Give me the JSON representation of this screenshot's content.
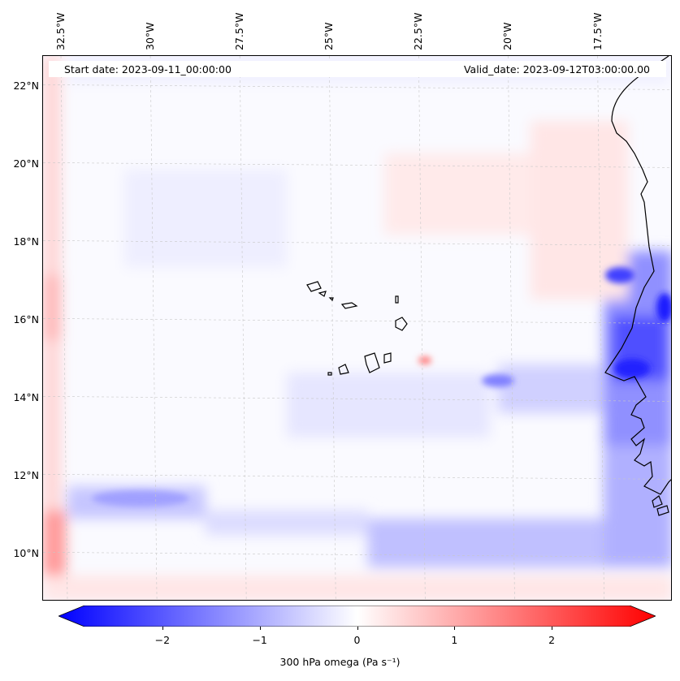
{
  "map": {
    "start_label": "Start date: 2023-09-11_00:00:00",
    "valid_label": "Valid_date: 2023-09-12T03:00:00.00",
    "lon_ticks": [
      {
        "value": -32.5,
        "label": "32.5°W"
      },
      {
        "value": -30.0,
        "label": "30°W"
      },
      {
        "value": -27.5,
        "label": "27.5°W"
      },
      {
        "value": -25.0,
        "label": "25°W"
      },
      {
        "value": -22.5,
        "label": "22.5°W"
      },
      {
        "value": -20.0,
        "label": "20°W"
      },
      {
        "value": -17.5,
        "label": "17.5°W"
      }
    ],
    "lat_ticks": [
      {
        "value": 22,
        "label": "22°N"
      },
      {
        "value": 20,
        "label": "20°N"
      },
      {
        "value": 18,
        "label": "18°N"
      },
      {
        "value": 16,
        "label": "16°N"
      },
      {
        "value": 14,
        "label": "14°N"
      },
      {
        "value": 12,
        "label": "12°N"
      },
      {
        "value": 10,
        "label": "10°N"
      }
    ],
    "extent": {
      "lon_min": -33.0,
      "lon_max": -15.4,
      "lat_min": 8.8,
      "lat_max": 22.8
    },
    "gridlines": true,
    "field": "omega",
    "colormap": [
      "#0000ff",
      "#ffffff",
      "#ff0000"
    ]
  },
  "colorbar": {
    "label": "300 hPa omega (Pa s⁻¹)",
    "vmin": -2.8,
    "vmax": 2.8,
    "extend": "both",
    "ticks": [
      {
        "value": -2,
        "label": "−2"
      },
      {
        "value": -1,
        "label": "−1"
      },
      {
        "value": 0,
        "label": "0"
      },
      {
        "value": 1,
        "label": "1"
      },
      {
        "value": 2,
        "label": "2"
      }
    ]
  }
}
